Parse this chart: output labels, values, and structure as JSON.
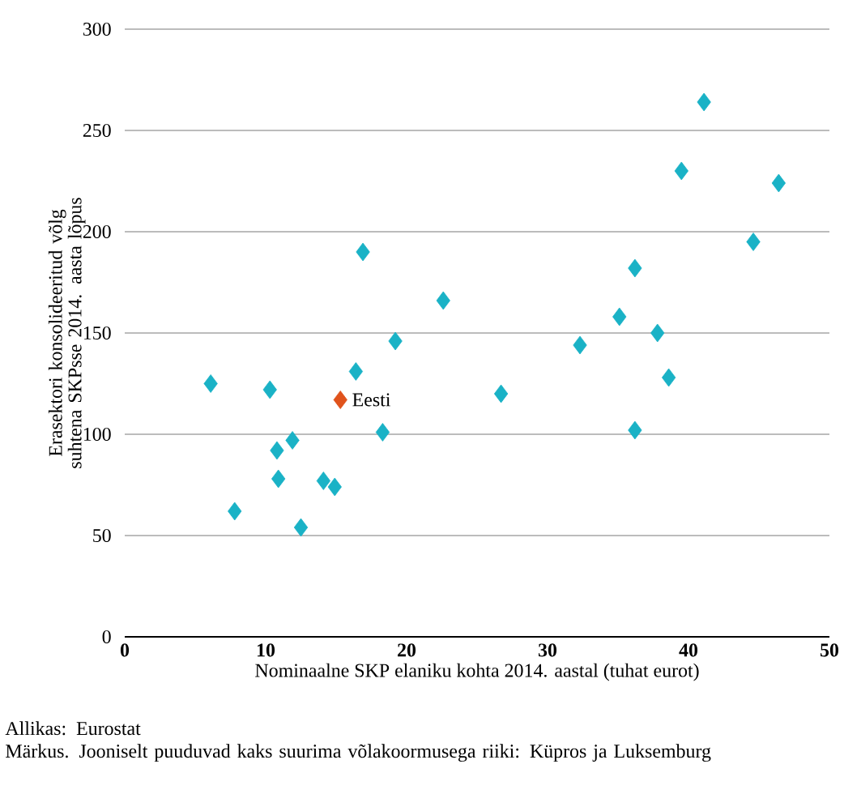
{
  "chart_data": {
    "type": "scatter",
    "xlabel": "Nominaalne SKP elaniku kohta 2014. aastal (tuhat eurot)",
    "ylabel": "Erasektori konsolideeritud võlg suhtena SKPsse 2014. aasta lõpus",
    "xlim": [
      0,
      50
    ],
    "ylim": [
      0,
      300
    ],
    "xticks": [
      0,
      10,
      20,
      30,
      40,
      50
    ],
    "yticks": [
      0,
      50,
      100,
      150,
      200,
      250,
      300
    ],
    "grid": "y",
    "marker": "diamond",
    "annotations": [
      "Allikas: Eurostat",
      "Märkus. Jooniselt puuduvad kaks suurima võlakoormusega riiki: Küpros ja Luksemburg"
    ],
    "series": [
      {
        "color": "#1ab2c6",
        "x": [
          6.1,
          7.8,
          10.3,
          10.8,
          10.9,
          11.9,
          12.5,
          14.1,
          14.9,
          16.4,
          16.9,
          18.3,
          19.2,
          22.6,
          26.7,
          32.3,
          35.1,
          36.2,
          36.2,
          37.8,
          38.6,
          39.5,
          41.1,
          44.6,
          46.4
        ],
        "values": [
          125,
          62,
          122,
          92,
          78,
          97,
          54,
          77,
          74,
          131,
          190,
          101,
          146,
          166,
          120,
          144,
          158,
          182,
          102,
          150,
          128,
          230,
          264,
          195,
          224
        ]
      },
      {
        "name": "Eesti",
        "color": "#e0531c",
        "x": [
          15.3
        ],
        "values": [
          117
        ]
      }
    ]
  }
}
